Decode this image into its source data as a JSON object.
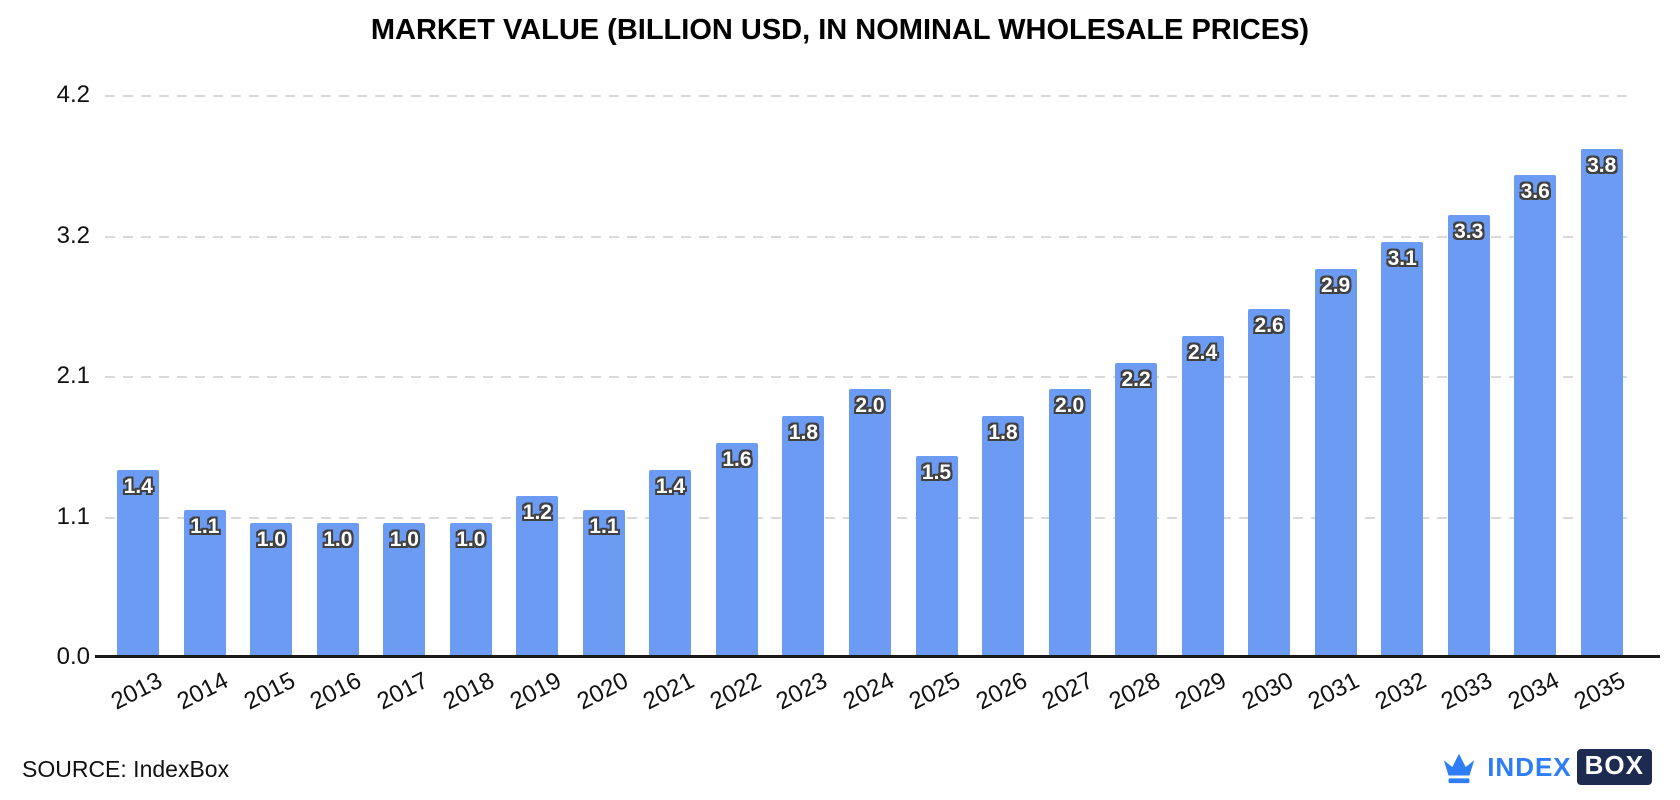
{
  "title": "MARKET VALUE (BILLION USD, IN NOMINAL WHOLESALE PRICES)",
  "source_label": "SOURCE: IndexBox",
  "logo": {
    "index": "INDEX",
    "box": "BOX"
  },
  "colors": {
    "bar": "#6C9BF4",
    "grid": "#D9D9D9",
    "axis": "#1A1A1A",
    "value_fill": "#FFFFFF",
    "value_outline": "#404040",
    "logo_blue": "#2E7DF6",
    "logo_navy": "#1C2B4F"
  },
  "chart_data": {
    "type": "bar",
    "title": "MARKET VALUE (BILLION USD, IN NOMINAL WHOLESALE PRICES)",
    "categories": [
      "2013",
      "2014",
      "2015",
      "2016",
      "2017",
      "2018",
      "2019",
      "2020",
      "2021",
      "2022",
      "2023",
      "2024",
      "2025",
      "2026",
      "2027",
      "2028",
      "2029",
      "2030",
      "2031",
      "2032",
      "2033",
      "2034",
      "2035"
    ],
    "values": [
      1.4,
      1.1,
      1.0,
      1.0,
      1.0,
      1.0,
      1.2,
      1.1,
      1.4,
      1.6,
      1.8,
      2.0,
      1.5,
      1.8,
      2.0,
      2.2,
      2.4,
      2.6,
      2.9,
      3.1,
      3.3,
      3.6,
      3.8
    ],
    "value_labels": [
      "1.4",
      "1.1",
      "1.0",
      "1.0",
      "1.0",
      "1.0",
      "1.2",
      "1.1",
      "1.4",
      "1.6",
      "1.8",
      "2.0",
      "1.5",
      "1.8",
      "2.0",
      "2.2",
      "2.4",
      "2.6",
      "2.9",
      "3.1",
      "3.3",
      "3.6",
      "3.8"
    ],
    "xlabel": "",
    "ylabel": "",
    "ylim": [
      0,
      4.2
    ],
    "yticks": [
      0,
      1.05,
      2.1,
      3.15,
      4.2
    ],
    "ytick_labels": [
      "0.0",
      "1.1",
      "2.1",
      "3.2",
      "4.2"
    ],
    "grid": "horizontal-dashed",
    "legend": "none",
    "bar_label_position": "inside-top"
  }
}
